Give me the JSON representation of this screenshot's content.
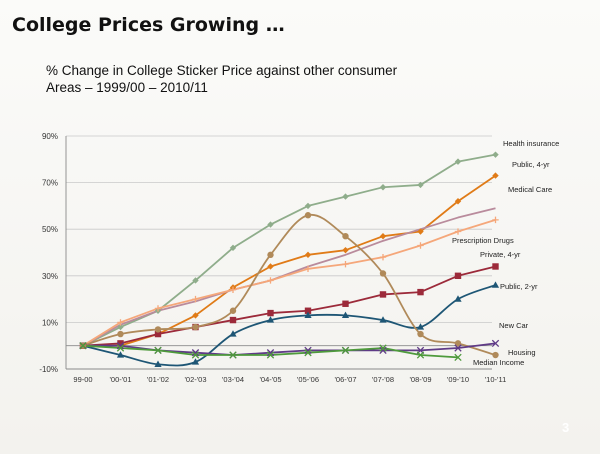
{
  "slide": {
    "title": "College Prices Growing …",
    "subtitle_line1": "% Change in College Sticker Price against other consumer",
    "subtitle_line2": "Areas – 1999/00 – 2010/11",
    "page_number": "3"
  },
  "chart_data": {
    "type": "line",
    "title": "% Change in College Sticker Price against other consumer Areas – 1999/00 – 2010/11",
    "xlabel": "",
    "ylabel": "",
    "categories": [
      "99-00",
      "'00-'01",
      "'01-'02",
      "'02-'03",
      "'03-'04",
      "'04-'05",
      "'05-'06",
      "'06-'07",
      "'07-'08",
      "'08-'09",
      "'09-'10",
      "'10-'11"
    ],
    "y_ticks": [
      -10,
      10,
      30,
      50,
      70,
      90
    ],
    "y_tick_labels": [
      "-10%",
      "10%",
      "30%",
      "50%",
      "70%",
      "90%"
    ],
    "ylim": [
      -10,
      90
    ],
    "grid": true,
    "series": [
      {
        "name": "Health insurance",
        "color": "#8fad8b",
        "marker": "diamond",
        "smooth": false,
        "values": [
          0,
          8,
          15,
          28,
          42,
          52,
          60,
          64,
          68,
          69,
          79,
          82
        ]
      },
      {
        "name": "Public, 4-yr",
        "color": "#e07b17",
        "marker": "diamond",
        "smooth": false,
        "values": [
          0,
          0,
          5,
          13,
          25,
          34,
          39,
          41,
          47,
          49,
          62,
          73
        ]
      },
      {
        "name": "Medical Care",
        "color": "#b98b9c",
        "marker": "none",
        "smooth": false,
        "values": [
          0,
          9,
          15,
          19,
          24,
          28,
          34,
          39,
          45,
          50,
          55,
          59
        ]
      },
      {
        "name": "Prescription Drugs",
        "color": "#f5a77a",
        "marker": "plus",
        "smooth": false,
        "values": [
          0,
          10,
          16,
          20,
          24,
          28,
          33,
          35,
          38,
          43,
          49,
          54
        ]
      },
      {
        "name": "Private, 4-yr",
        "color": "#9c2a3a",
        "marker": "square",
        "smooth": false,
        "values": [
          0,
          1,
          5,
          8,
          11,
          14,
          15,
          18,
          22,
          23,
          30,
          34
        ]
      },
      {
        "name": "Public, 2-yr",
        "color": "#1e5675",
        "marker": "triangle",
        "smooth": true,
        "values": [
          0,
          -4,
          -8,
          -7,
          5,
          11,
          13,
          13,
          11,
          8,
          20,
          26
        ]
      },
      {
        "name": "New Car",
        "color": "#b08a5a",
        "marker": "circle",
        "smooth": true,
        "values": [
          0,
          5,
          7,
          8,
          15,
          39,
          56,
          47,
          31,
          5,
          1,
          -4
        ]
      },
      {
        "name": "Housing",
        "color": "#5f3a86",
        "marker": "x",
        "smooth": false,
        "values": [
          0,
          0,
          -2,
          -3,
          -4,
          -3,
          -2,
          -2,
          -2,
          -2,
          -1,
          1
        ]
      },
      {
        "name": "Median Income",
        "color": "#4e9a3b",
        "marker": "x",
        "smooth": false,
        "values": [
          0,
          -1,
          -2,
          -4,
          -4,
          -4,
          -3,
          -2,
          -1,
          -4,
          -5,
          null
        ]
      }
    ]
  }
}
